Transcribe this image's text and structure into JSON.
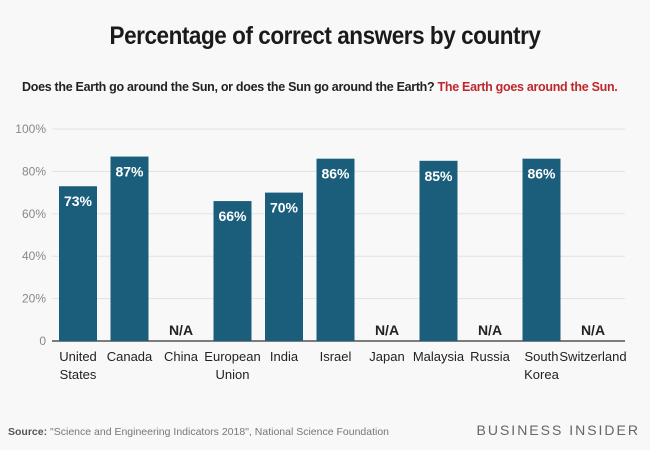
{
  "chart_data": {
    "type": "bar",
    "title": "Percentage of correct answers by country",
    "subtitle_question": "Does the Earth go around the Sun, or does the Sun go around the Earth?",
    "subtitle_answer": "The Earth goes around the Sun.",
    "categories": [
      [
        "United",
        "States"
      ],
      [
        "Canada"
      ],
      [
        "China"
      ],
      [
        "European",
        "Union"
      ],
      [
        "India"
      ],
      [
        "Israel"
      ],
      [
        "Japan"
      ],
      [
        "Malaysia"
      ],
      [
        "Russia"
      ],
      [
        "South",
        "Korea"
      ],
      [
        "Switzerland"
      ]
    ],
    "values": [
      73,
      87,
      null,
      66,
      70,
      86,
      null,
      85,
      null,
      86,
      null
    ],
    "data_labels": [
      "73%",
      "87%",
      "N/A",
      "66%",
      "70%",
      "86%",
      "N/A",
      "85%",
      "N/A",
      "86%",
      "N/A"
    ],
    "yticks": [
      "0",
      "20%",
      "40%",
      "60%",
      "80%",
      "100%"
    ],
    "ylim": [
      0,
      100
    ],
    "grid": true,
    "colors": {
      "bar": "#1b5e7b",
      "answer": "#c0272d"
    }
  },
  "footer": {
    "source_label": "Source:",
    "source_text": " \"Science and Engineering Indicators 2018\", National Science Foundation",
    "brand": "BUSINESS INSIDER"
  }
}
